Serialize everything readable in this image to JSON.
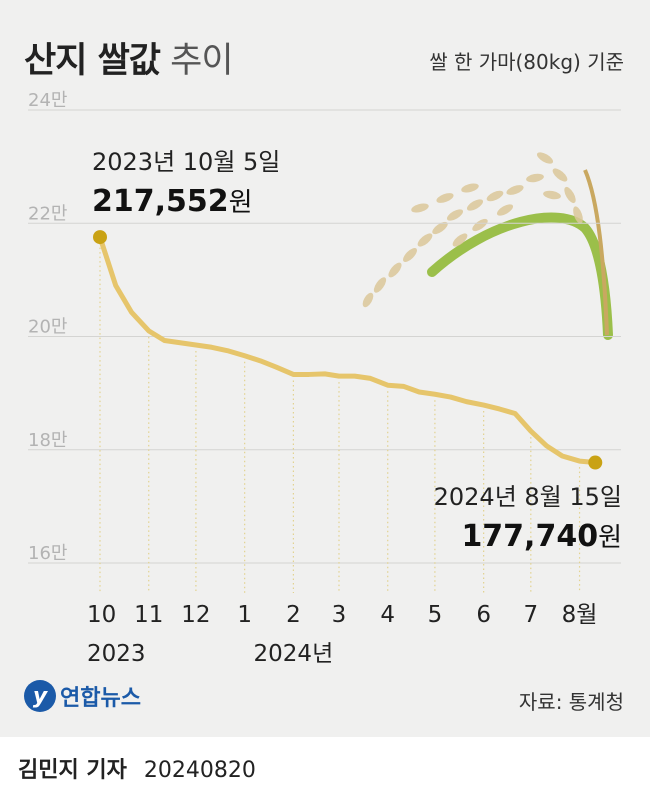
{
  "title_bold": "산지 쌀값",
  "title_light": "추이",
  "unit_note": "쌀 한 가마(80kg) 기준",
  "source": "자료: 통계청",
  "logo_text": "연합뉴스",
  "byline_name": "김민지 기자",
  "byline_date": "20240820",
  "chart_data": {
    "type": "line",
    "title": "산지 쌀값 추이",
    "unit": "쌀 한 가마(80kg) 기준",
    "yticks": [
      {
        "value": 240000,
        "label": "24만"
      },
      {
        "value": 220000,
        "label": "22만"
      },
      {
        "value": 200000,
        "label": "20만"
      },
      {
        "value": 180000,
        "label": "18만"
      },
      {
        "value": 160000,
        "label": "16만"
      }
    ],
    "ylim": [
      160000,
      240000
    ],
    "xlim": [
      "2023-10-05",
      "2024-08-25"
    ],
    "xticks": [
      {
        "date": "2023-10-05",
        "label": "10",
        "sublabel": "2023"
      },
      {
        "date": "2023-11-05",
        "label": "11",
        "sublabel": ""
      },
      {
        "date": "2023-12-05",
        "label": "12",
        "sublabel": ""
      },
      {
        "date": "2024-01-05",
        "label": "1",
        "sublabel": ""
      },
      {
        "date": "2024-02-05",
        "label": "2",
        "sublabel": "2024년"
      },
      {
        "date": "2024-03-05",
        "label": "3",
        "sublabel": ""
      },
      {
        "date": "2024-04-05",
        "label": "4",
        "sublabel": ""
      },
      {
        "date": "2024-05-05",
        "label": "5",
        "sublabel": ""
      },
      {
        "date": "2024-06-05",
        "label": "6",
        "sublabel": ""
      },
      {
        "date": "2024-07-05",
        "label": "7",
        "sublabel": ""
      },
      {
        "date": "2024-08-05",
        "label": "8월",
        "sublabel": ""
      }
    ],
    "x": [
      "2023-10-05",
      "2023-10-15",
      "2023-10-25",
      "2023-11-05",
      "2023-11-15",
      "2023-11-25",
      "2023-12-05",
      "2023-12-15",
      "2023-12-25",
      "2024-01-05",
      "2024-01-15",
      "2024-01-25",
      "2024-02-05",
      "2024-02-15",
      "2024-02-25",
      "2024-03-05",
      "2024-03-15",
      "2024-03-25",
      "2024-04-05",
      "2024-04-15",
      "2024-04-25",
      "2024-05-05",
      "2024-05-15",
      "2024-05-25",
      "2024-06-05",
      "2024-06-15",
      "2024-06-25",
      "2024-07-05",
      "2024-07-15",
      "2024-07-25",
      "2024-08-05",
      "2024-08-15"
    ],
    "y": [
      217552,
      209000,
      204300,
      201000,
      199300,
      198900,
      198500,
      198100,
      197500,
      196600,
      195700,
      194600,
      193300,
      193300,
      193400,
      193000,
      193000,
      192600,
      191400,
      191200,
      190200,
      189800,
      189300,
      188500,
      187900,
      187200,
      186400,
      183300,
      180700,
      178900,
      178000,
      177740
    ],
    "start": {
      "date_label": "2023년 10월 5일",
      "value_label": "217,552",
      "unit": "원"
    },
    "end": {
      "date_label": "2024년 8월 15일",
      "value_label": "177,740",
      "unit": "원"
    },
    "colors": {
      "line": "#e6c56b",
      "marker": "#c9a214",
      "grid": "#d4d4d2",
      "vgrid": "#e2d28f"
    }
  }
}
